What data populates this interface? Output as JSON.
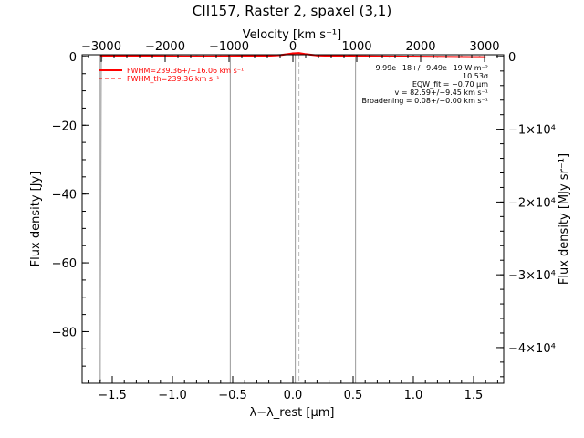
{
  "chart_data": {
    "type": "line",
    "title": "CII157, Raster 2, spaxel (3,1)",
    "xlabel": "λ−λ_rest [μm]",
    "ylabel": "Flux density [Jy]",
    "top_xlabel": "Velocity [km s⁻¹]",
    "right_ylabel": "Flux density [MJy sr⁻¹]",
    "xlim": [
      -1.75,
      1.75
    ],
    "ylim": [
      -95,
      0.5
    ],
    "top_xlim": [
      -3300,
      3300
    ],
    "right_ylim": [
      -44900,
      236
    ],
    "x_ticks": [
      {
        "value": -1.5,
        "label": "−1.5"
      },
      {
        "value": -1.0,
        "label": "−1.0"
      },
      {
        "value": -0.5,
        "label": "−0.5"
      },
      {
        "value": 0.0,
        "label": "0.0"
      },
      {
        "value": 0.5,
        "label": "0.5"
      },
      {
        "value": 1.0,
        "label": "1.0"
      },
      {
        "value": 1.5,
        "label": "1.5"
      }
    ],
    "y_ticks": [
      {
        "value": 0,
        "label": "0"
      },
      {
        "value": -20,
        "label": "−20"
      },
      {
        "value": -40,
        "label": "−40"
      },
      {
        "value": -60,
        "label": "−60"
      },
      {
        "value": -80,
        "label": "−80"
      }
    ],
    "top_ticks": [
      {
        "value": -3000,
        "label": "−3000"
      },
      {
        "value": -2000,
        "label": "−2000"
      },
      {
        "value": -1000,
        "label": "−1000"
      },
      {
        "value": 0,
        "label": "0"
      },
      {
        "value": 1000,
        "label": "1000"
      },
      {
        "value": 2000,
        "label": "2000"
      },
      {
        "value": 3000,
        "label": "3000"
      }
    ],
    "right_ticks": [
      {
        "value": 0,
        "label": "0"
      },
      {
        "value": -10000,
        "label": "−1×10⁴"
      },
      {
        "value": -20000,
        "label": "−2×10⁴"
      },
      {
        "value": -30000,
        "label": "−3×10⁴"
      },
      {
        "value": -40000,
        "label": "−4×10⁴"
      }
    ],
    "vertical_lines": [
      {
        "x": -1.6,
        "color": "#999999",
        "style": "solid"
      },
      {
        "x": -0.52,
        "color": "#999999",
        "style": "solid"
      },
      {
        "x": 0.02,
        "color": "#999999",
        "style": "solid"
      },
      {
        "x": 0.05,
        "color": "#bbbbbb",
        "style": "dashed"
      },
      {
        "x": 0.52,
        "color": "#999999",
        "style": "solid"
      }
    ],
    "series": [
      {
        "name": "FWHM=239.36+/−16.06 km s⁻¹",
        "color": "#ff0000",
        "style": "solid",
        "x": [
          -1.6,
          -1.2,
          -0.8,
          -0.4,
          -0.2,
          -0.1,
          0.0,
          0.05,
          0.1,
          0.2,
          0.4,
          0.8,
          1.2,
          1.6
        ],
        "y": [
          0.2,
          0.1,
          0.0,
          0.1,
          0.2,
          0.4,
          0.9,
          1.0,
          0.7,
          0.3,
          0.1,
          0.0,
          -0.1,
          -0.2
        ]
      },
      {
        "name": "FWHM_th=239.36 km s⁻¹",
        "color": "#ff0000",
        "style": "dashed",
        "x": [],
        "y": []
      }
    ],
    "data_points": {
      "color": "#aaaaaa",
      "x": [
        -1.6,
        -1.59,
        -1.58,
        -1.4,
        -1.2,
        -1.0,
        -0.8,
        -0.6,
        -0.4,
        -0.2,
        0.0,
        0.2,
        0.4,
        0.6,
        0.8,
        1.0,
        1.2,
        1.4,
        1.55
      ],
      "y": [
        -94,
        -1.2,
        0.1,
        0.3,
        0.1,
        0.0,
        0.2,
        0.0,
        0.1,
        0.3,
        0.9,
        0.3,
        0.1,
        0.0,
        -0.1,
        0.1,
        -0.2,
        0.0,
        -0.1
      ]
    },
    "annotations": [
      "9.99e−18+/−9.49e−19 W m⁻²",
      "10.53σ",
      "EQW_fit = −0.70 μm",
      "v = 82.59+/−9.45 km s⁻¹",
      "Broadening = 0.08+/−0.00 km s⁻¹"
    ]
  }
}
